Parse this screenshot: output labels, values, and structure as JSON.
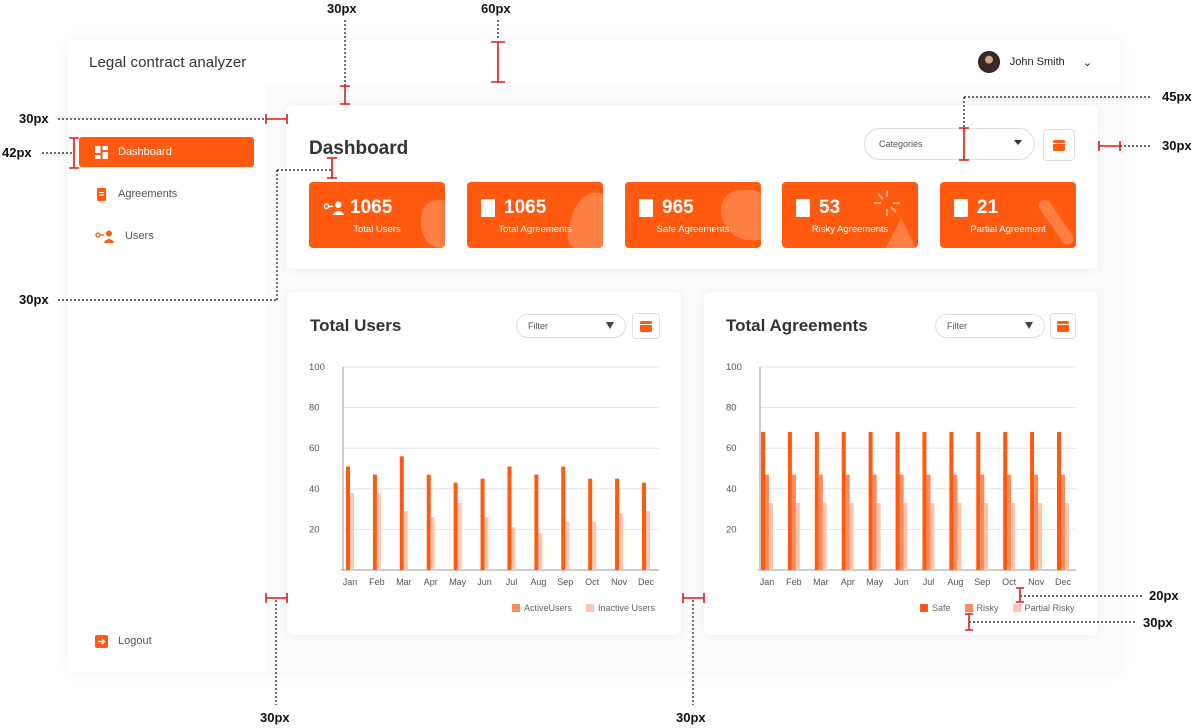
{
  "app": {
    "title": "Legal contract analyzer",
    "user_name": "John Smith"
  },
  "sidebar": {
    "items": [
      {
        "label": "Dashboard",
        "icon": "dashboard-icon",
        "active": true
      },
      {
        "label": "Agreements",
        "icon": "document-icon",
        "active": false
      },
      {
        "label": "Users",
        "icon": "users-icon",
        "active": false
      }
    ],
    "logout_label": "Logout"
  },
  "dashboard": {
    "title": "Dashboard",
    "categories_placeholder": "Categories",
    "stats": [
      {
        "value": "1065",
        "label": "Total Users",
        "icon": "users-icon"
      },
      {
        "value": "1065",
        "label": "Total Agreements",
        "icon": "document-icon"
      },
      {
        "value": "965",
        "label": "Safe Agreements",
        "icon": "document-icon"
      },
      {
        "value": "53",
        "label": "Risky Agreements",
        "icon": "document-icon"
      },
      {
        "value": "21",
        "label": "Partial Agreement",
        "icon": "document-icon"
      }
    ]
  },
  "annotations": [
    "30px",
    "60px",
    "30px",
    "42px",
    "45px",
    "30px",
    "30px",
    "20px",
    "30px",
    "30px",
    "30px"
  ],
  "colors": {
    "accent": "#ff5a0f",
    "accent_mid": "#ff8a5c",
    "accent_light": "#ffc6ad"
  },
  "chart_data": [
    {
      "type": "bar",
      "title": "Total Users",
      "filter_label": "Filter",
      "categories": [
        "Jan",
        "Feb",
        "Mar",
        "Apr",
        "May",
        "Jun",
        "Jul",
        "Aug",
        "Sep",
        "Oct",
        "Nov",
        "Dec"
      ],
      "y_ticks": [
        "100",
        "80",
        "60",
        "40",
        "20"
      ],
      "ylim": [
        0,
        100
      ],
      "grid": true,
      "legend_position": "bottom-right",
      "series": [
        {
          "name": "ActiveUsers",
          "color": "#ff5a0f",
          "values": [
            51,
            47,
            56,
            47,
            43,
            45,
            51,
            47,
            51,
            45,
            45,
            43
          ]
        },
        {
          "name": "Inactive Users",
          "color": "#ffc6ad",
          "values": [
            38,
            38,
            29,
            26,
            33,
            26,
            21,
            18,
            24,
            24,
            28,
            29
          ]
        }
      ]
    },
    {
      "type": "bar",
      "title": "Total Agreements",
      "filter_label": "Filter",
      "categories": [
        "Jan",
        "Feb",
        "Mar",
        "Apr",
        "May",
        "Jun",
        "Jul",
        "Aug",
        "Sep",
        "Oct",
        "Nov",
        "Dec"
      ],
      "y_ticks": [
        "100",
        "80",
        "60",
        "40",
        "20"
      ],
      "ylim": [
        0,
        100
      ],
      "grid": true,
      "legend_position": "bottom-right",
      "series": [
        {
          "name": "Safe",
          "color": "#ff5a0f",
          "values": [
            68,
            68,
            68,
            68,
            68,
            68,
            68,
            68,
            68,
            68,
            68,
            68
          ]
        },
        {
          "name": "Risky",
          "color": "#ff8a5c",
          "values": [
            47,
            47,
            47,
            47,
            47,
            47,
            47,
            47,
            47,
            47,
            47,
            47
          ]
        },
        {
          "name": "Partial Risky",
          "color": "#ffc6ad",
          "values": [
            33,
            33,
            33,
            33,
            33,
            33,
            33,
            33,
            33,
            33,
            33,
            33
          ]
        }
      ]
    }
  ]
}
